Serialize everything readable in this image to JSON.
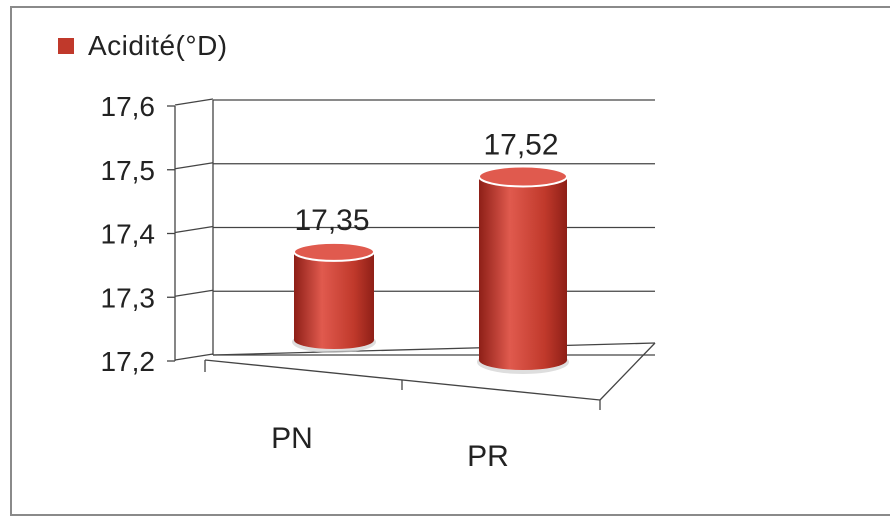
{
  "chart_data": {
    "type": "bar",
    "style": "3d-cylinder",
    "categories": [
      "PN",
      "PR"
    ],
    "series": [
      {
        "name": "Acidité(°D)",
        "values": [
          17.35,
          17.52
        ],
        "data_labels": [
          "17,35",
          "17,52"
        ]
      }
    ],
    "yticks": [
      "17,2",
      "17,3",
      "17,4",
      "17,5",
      "17,6"
    ],
    "ylim": [
      17.2,
      17.6
    ],
    "grid": true,
    "legend_position": "top-left",
    "colors": {
      "bar": "#c0392b",
      "bar_dark": "#8e1f17",
      "bar_light": "#e05a4e",
      "legend": "#c0392b",
      "grid": "#444444"
    }
  }
}
